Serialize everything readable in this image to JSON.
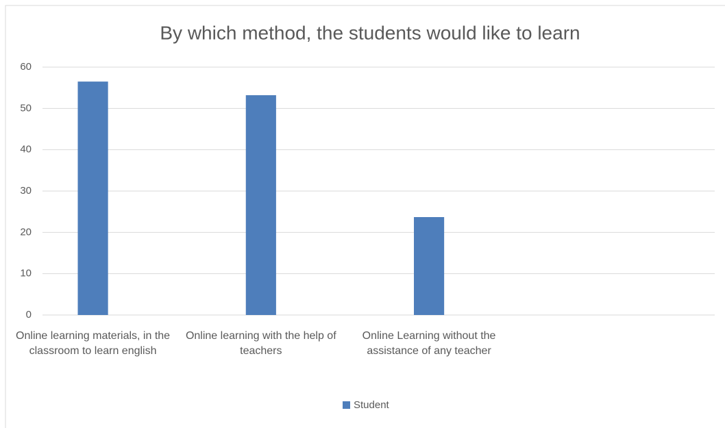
{
  "chart_data": {
    "type": "bar",
    "title": "By which method, the students would like to learn",
    "categories": [
      "Online learning materials, in the classroom to learn english",
      "Online learning with the help of teachers",
      "Online Learning without the assistance of any teacher",
      null
    ],
    "series": [
      {
        "name": "Student",
        "color": "#4e7ebb",
        "values": [
          56.5,
          53.2,
          23.7,
          null
        ]
      }
    ],
    "ylim": [
      0,
      60
    ],
    "yticks": [
      0,
      10,
      20,
      30,
      40,
      50,
      60
    ],
    "grid": true,
    "legend": "bottom"
  }
}
